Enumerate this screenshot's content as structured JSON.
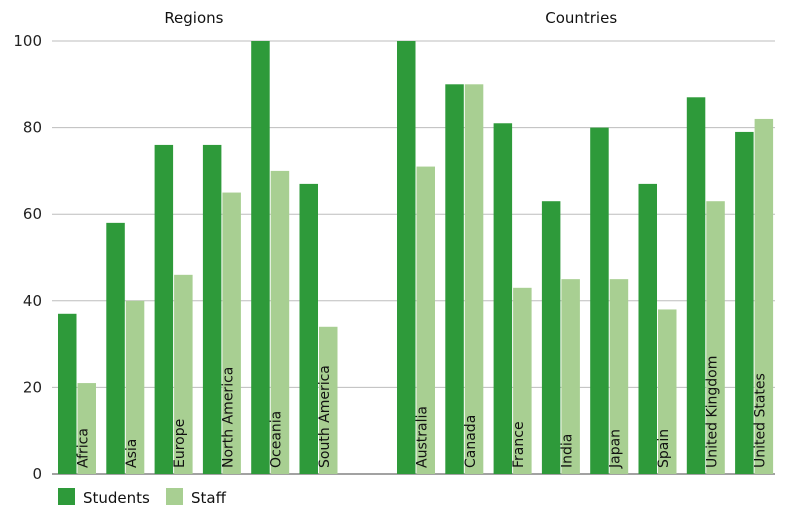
{
  "chart_data": {
    "type": "bar",
    "groups": [
      {
        "title": "Regions",
        "categories": [
          "Africa",
          "Asia",
          "Europe",
          "North America",
          "Oceania",
          "South America"
        ]
      },
      {
        "title": "Countries",
        "categories": [
          "Australia",
          "Canada",
          "France",
          "India",
          "Japan",
          "Spain",
          "United Kingdom",
          "United States"
        ]
      }
    ],
    "categories": [
      "Africa",
      "Asia",
      "Europe",
      "North America",
      "Oceania",
      "South America",
      "Australia",
      "Canada",
      "France",
      "India",
      "Japan",
      "Spain",
      "United Kingdom",
      "United States"
    ],
    "series": [
      {
        "name": "Students",
        "color": "#2e9a3a",
        "values": [
          37,
          58,
          76,
          76,
          100,
          67,
          100,
          90,
          81,
          63,
          80,
          67,
          87,
          79
        ]
      },
      {
        "name": "Staff",
        "color": "#a8cf92",
        "values": [
          21,
          40,
          46,
          65,
          70,
          34,
          71,
          90,
          43,
          45,
          45,
          38,
          63,
          82
        ]
      }
    ],
    "yticks": [
      0,
      20,
      40,
      60,
      80,
      100
    ],
    "ylim": [
      0,
      100
    ],
    "grid": true,
    "legend": "bottom-left"
  }
}
